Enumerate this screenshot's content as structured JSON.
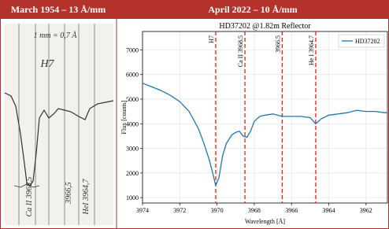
{
  "header": {
    "left": "March 1954 – 13 Å/mm",
    "right": "April 2022 – 10 Å/mm"
  },
  "scan": {
    "annotations": [
      "1 mm = 0,7 Å",
      "H7",
      "Ca II 3968,5",
      "3966,5",
      "HeI 3964,7"
    ]
  },
  "chart_data": {
    "type": "line",
    "title": "HD37202 @1.82m Reflector",
    "x_label": "Wavelength [Å]",
    "y_label": "Flux [counts]",
    "x": [
      3974,
      3973.5,
      3973,
      3972.5,
      3972,
      3971.5,
      3971,
      3970.7,
      3970.4,
      3970.2,
      3970.07,
      3969.9,
      3969.7,
      3969.5,
      3969.2,
      3969,
      3968.8,
      3968.6,
      3968.4,
      3968.2,
      3968,
      3967.7,
      3967.4,
      3967,
      3966.5,
      3966,
      3965.5,
      3965,
      3964.7,
      3964.4,
      3964,
      3963.5,
      3963,
      3962.5,
      3962,
      3961.5,
      3961,
      3960.85
    ],
    "series": [
      {
        "name": "HD37202",
        "color": "#1f77b4",
        "values": [
          5650,
          5500,
          5350,
          5150,
          4900,
          4500,
          3800,
          3200,
          2500,
          1900,
          1500,
          1800,
          2700,
          3200,
          3550,
          3650,
          3700,
          3500,
          3450,
          3700,
          4100,
          4300,
          4350,
          4400,
          4300,
          4300,
          4300,
          4250,
          4000,
          4200,
          4350,
          4400,
          4450,
          4550,
          4500,
          4500,
          4450,
          4450
        ]
      }
    ],
    "markers": [
      {
        "label": "H7",
        "x": 3970.07
      },
      {
        "label": "Ca II 3968.5",
        "x": 3968.5
      },
      {
        "label": "3966.5",
        "x": 3966.5
      },
      {
        "label": "He I 3964.7",
        "x": 3964.7
      }
    ],
    "marker_color": "#e0201b",
    "xlim": [
      3974,
      3960.85
    ],
    "ylim": [
      780,
      7750
    ],
    "xticks": [
      3974,
      3972,
      3970,
      3968,
      3966,
      3964,
      3962
    ],
    "yticks": [
      1000,
      2000,
      3000,
      4000,
      5000,
      6000,
      7000
    ],
    "legend": "upper right"
  }
}
